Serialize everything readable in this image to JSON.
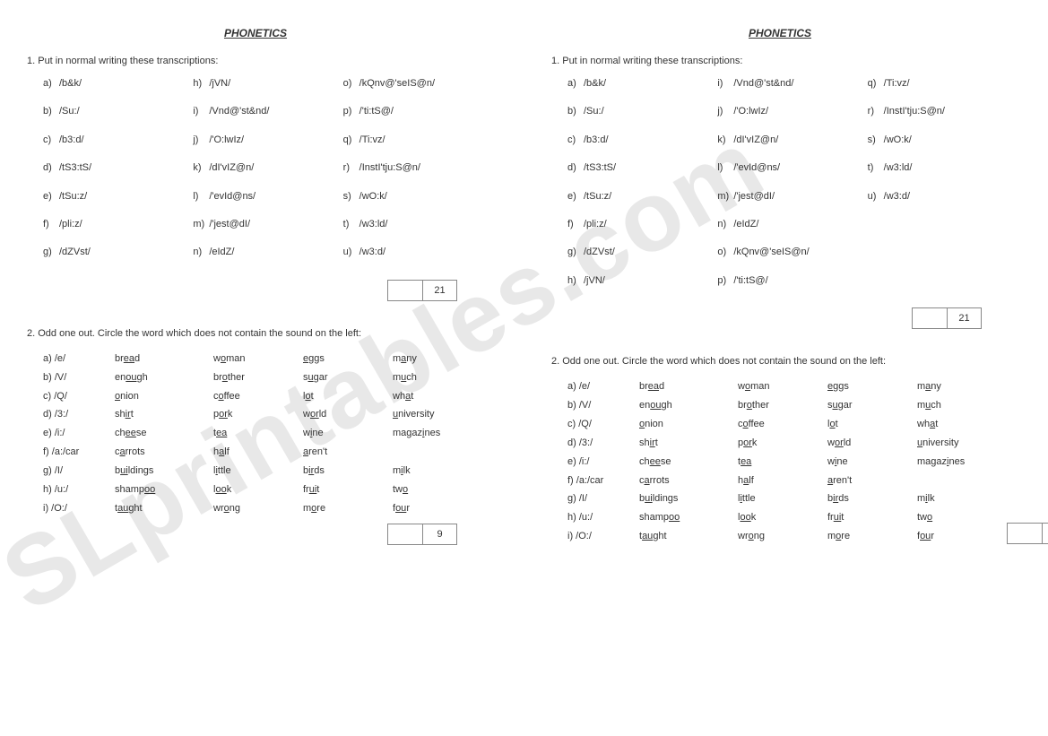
{
  "title": "PHONETICS",
  "watermark": "SLprintables.com",
  "q1": {
    "prompt": "1. Put in normal writing these transcriptions:",
    "score": "21",
    "left": [
      {
        "l": "a)",
        "v": "/b&k/"
      },
      {
        "l": "b)",
        "v": "/Su:/"
      },
      {
        "l": "c)",
        "v": "/b3:d/"
      },
      {
        "l": "d)",
        "v": "/tS3:tS/"
      },
      {
        "l": "e)",
        "v": "/tSu:z/"
      },
      {
        "l": "f)",
        "v": "/pli:z/"
      },
      {
        "l": "g)",
        "v": "/dZVst/"
      },
      {
        "l": "h)",
        "v": "/jVN/"
      },
      {
        "l": "i)",
        "v": "/Vnd@'st&nd/"
      },
      {
        "l": "j)",
        "v": "/'O:lwIz/"
      },
      {
        "l": "k)",
        "v": "/dI'vIZ@n/"
      },
      {
        "l": "l)",
        "v": "/'evId@ns/"
      },
      {
        "l": "m)",
        "v": "/'jest@dI/"
      },
      {
        "l": "n)",
        "v": "/eIdZ/"
      },
      {
        "l": "o)",
        "v": "/kQnv@'seIS@n/"
      },
      {
        "l": "p)",
        "v": "/'ti:tS@/"
      },
      {
        "l": "q)",
        "v": "/Ti:vz/"
      },
      {
        "l": "r)",
        "v": "/InstI'tju:S@n/"
      },
      {
        "l": "s)",
        "v": "/wO:k/"
      },
      {
        "l": "t)",
        "v": "/w3:ld/"
      },
      {
        "l": "u)",
        "v": "/w3:d/"
      }
    ],
    "right": [
      {
        "l": "a)",
        "v": "/b&k/"
      },
      {
        "l": "b)",
        "v": "/Su:/"
      },
      {
        "l": "c)",
        "v": "/b3:d/"
      },
      {
        "l": "d)",
        "v": "/tS3:tS/"
      },
      {
        "l": "e)",
        "v": "/tSu:z/"
      },
      {
        "l": "f)",
        "v": "/pli:z/"
      },
      {
        "l": "g)",
        "v": "/dZVst/"
      },
      {
        "l": "h)",
        "v": "/jVN/"
      },
      {
        "l": "i)",
        "v": "/Vnd@'st&nd/"
      },
      {
        "l": "j)",
        "v": "/'O:lwIz/"
      },
      {
        "l": "k)",
        "v": "/dI'vIZ@n/"
      },
      {
        "l": "l)",
        "v": "/'evId@ns/"
      },
      {
        "l": "m)",
        "v": "/'jest@dI/"
      },
      {
        "l": "n)",
        "v": "/eIdZ/"
      },
      {
        "l": "o)",
        "v": "/kQnv@'seIS@n/"
      },
      {
        "l": "p)",
        "v": "/'ti:tS@/"
      },
      {
        "l": "q)",
        "v": "/Ti:vz/"
      },
      {
        "l": "r)",
        "v": "/InstI'tju:S@n/"
      },
      {
        "l": "s)",
        "v": "/wO:k/"
      },
      {
        "l": "t)",
        "v": "/w3:ld/"
      },
      {
        "l": "u)",
        "v": "/w3:d/"
      }
    ]
  },
  "q2": {
    "prompt": "2. Odd one out. Circle the word which does not contain the sound on the left:",
    "score": "9",
    "rows": [
      {
        "l": "a) /e/",
        "w": [
          [
            "br",
            "ea",
            "d"
          ],
          [
            "w",
            "o",
            "man"
          ],
          [
            "",
            "e",
            "ggs"
          ],
          [
            "m",
            "a",
            "ny"
          ]
        ]
      },
      {
        "l": "b) /V/",
        "w": [
          [
            "en",
            "ou",
            "gh"
          ],
          [
            "br",
            "o",
            "ther"
          ],
          [
            "s",
            "u",
            "gar"
          ],
          [
            "m",
            "u",
            "ch"
          ]
        ]
      },
      {
        "l": "c) /Q/",
        "w": [
          [
            "",
            "o",
            "nion"
          ],
          [
            "c",
            "o",
            "ffee"
          ],
          [
            "l",
            "o",
            "t"
          ],
          [
            "wh",
            "a",
            "t"
          ]
        ]
      },
      {
        "l": "d) /3:/",
        "w": [
          [
            "sh",
            "ir",
            "t"
          ],
          [
            "p",
            "or",
            "k"
          ],
          [
            "w",
            "or",
            "ld"
          ],
          [
            "",
            "u",
            "niversity"
          ]
        ]
      },
      {
        "l": "e) /i:/",
        "w": [
          [
            "ch",
            "ee",
            "se"
          ],
          [
            "t",
            "ea",
            ""
          ],
          [
            "w",
            "i",
            "ne"
          ],
          [
            "magaz",
            "i",
            "nes"
          ]
        ]
      },
      {
        "l": "f) /a:/car",
        "w": [
          [
            "c",
            "a",
            "rrots"
          ],
          [
            "h",
            "a",
            "lf"
          ],
          [
            "",
            "a",
            "ren't"
          ],
          [
            "",
            "",
            ""
          ]
        ]
      },
      {
        "l": "g) /I/",
        "w": [
          [
            "b",
            "ui",
            "ldings"
          ],
          [
            "l",
            "i",
            "ttle"
          ],
          [
            "b",
            "ir",
            "ds"
          ],
          [
            "m",
            "i",
            "lk"
          ]
        ]
      },
      {
        "l": "h) /u:/",
        "w": [
          [
            "shamp",
            "oo",
            ""
          ],
          [
            "l",
            "oo",
            "k"
          ],
          [
            "fr",
            "ui",
            "t"
          ],
          [
            "tw",
            "o",
            ""
          ]
        ]
      },
      {
        "l": "i) /O:/",
        "w": [
          [
            "t",
            "au",
            "ght"
          ],
          [
            "wr",
            "o",
            "ng"
          ],
          [
            "m",
            "o",
            "re"
          ],
          [
            "f",
            "ou",
            "r"
          ]
        ]
      }
    ]
  }
}
